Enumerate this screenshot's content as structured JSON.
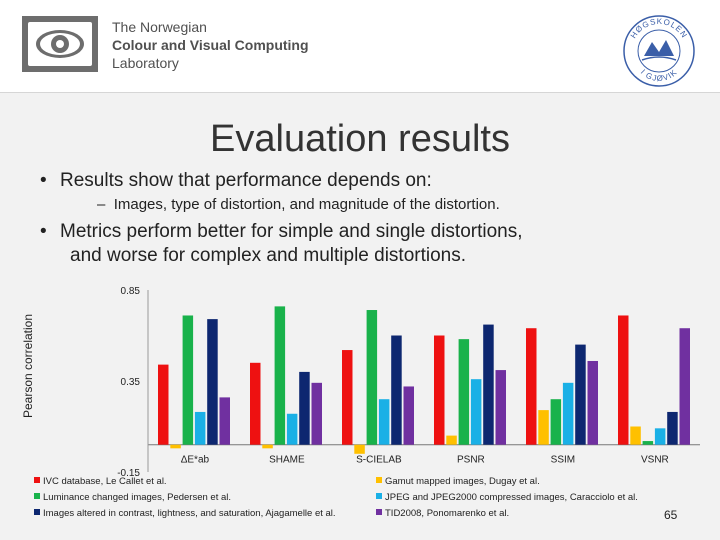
{
  "header": {
    "lab_name_line1": "The Norwegian",
    "lab_name_line2": "Colour and Visual Computing",
    "lab_name_line3": "Laboratory",
    "seal_text_top": "HØGSKOLEN",
    "seal_text_bottom": "I GJØVIK"
  },
  "slide": {
    "title": "Evaluation results",
    "bullet1": "Results show that performance depends on:",
    "bullet1_sub": "Images, type of distortion, and magnitude of the distortion.",
    "bullet2_line1": "Metrics perform better for simple and single distortions,",
    "bullet2_line2": "and worse for complex and multiple distortions.",
    "bullet_char": "•",
    "sub_bullet_char": "–",
    "page_number": "65"
  },
  "chart_data": {
    "type": "bar",
    "ylabel": "Pearson correlation",
    "ylim": [
      -0.15,
      0.85
    ],
    "yticks": [
      "0.85",
      "0.35",
      "-0.15"
    ],
    "ytick_values": [
      0.85,
      0.35,
      -0.15
    ],
    "categories": [
      "ΔE*ab",
      "SHAME",
      "S-CIELAB",
      "PSNR",
      "SSIM",
      "VSNR"
    ],
    "series": [
      {
        "name": "IVC database, Le Callet et al.",
        "color": "#ee1111",
        "values": [
          0.44,
          0.45,
          0.52,
          0.6,
          0.64,
          0.71
        ]
      },
      {
        "name": "Gamut mapped images, Dugay et al.",
        "color": "#ffc000",
        "values": [
          -0.02,
          -0.02,
          -0.05,
          0.05,
          0.19,
          0.1
        ]
      },
      {
        "name": "Luminance changed images, Pedersen et al.",
        "color": "#19b24b",
        "values": [
          0.71,
          0.76,
          0.74,
          0.58,
          0.25,
          0.02
        ]
      },
      {
        "name": "JPEG and JPEG2000 compressed images, Caracciolo et al.",
        "color": "#1ab0e6",
        "values": [
          0.18,
          0.17,
          0.25,
          0.36,
          0.34,
          0.09
        ]
      },
      {
        "name": "Images altered in contrast, lightness, and saturation, Ajagamelle et al.",
        "color": "#0d2770",
        "values": [
          0.69,
          0.4,
          0.6,
          0.66,
          0.55,
          0.18
        ]
      },
      {
        "name": "TID2008, Ponomarenko et al.",
        "color": "#7030a0",
        "values": [
          0.26,
          0.34,
          0.32,
          0.41,
          0.46,
          0.64
        ]
      }
    ],
    "legend_placement": "bottom",
    "grid": false
  }
}
